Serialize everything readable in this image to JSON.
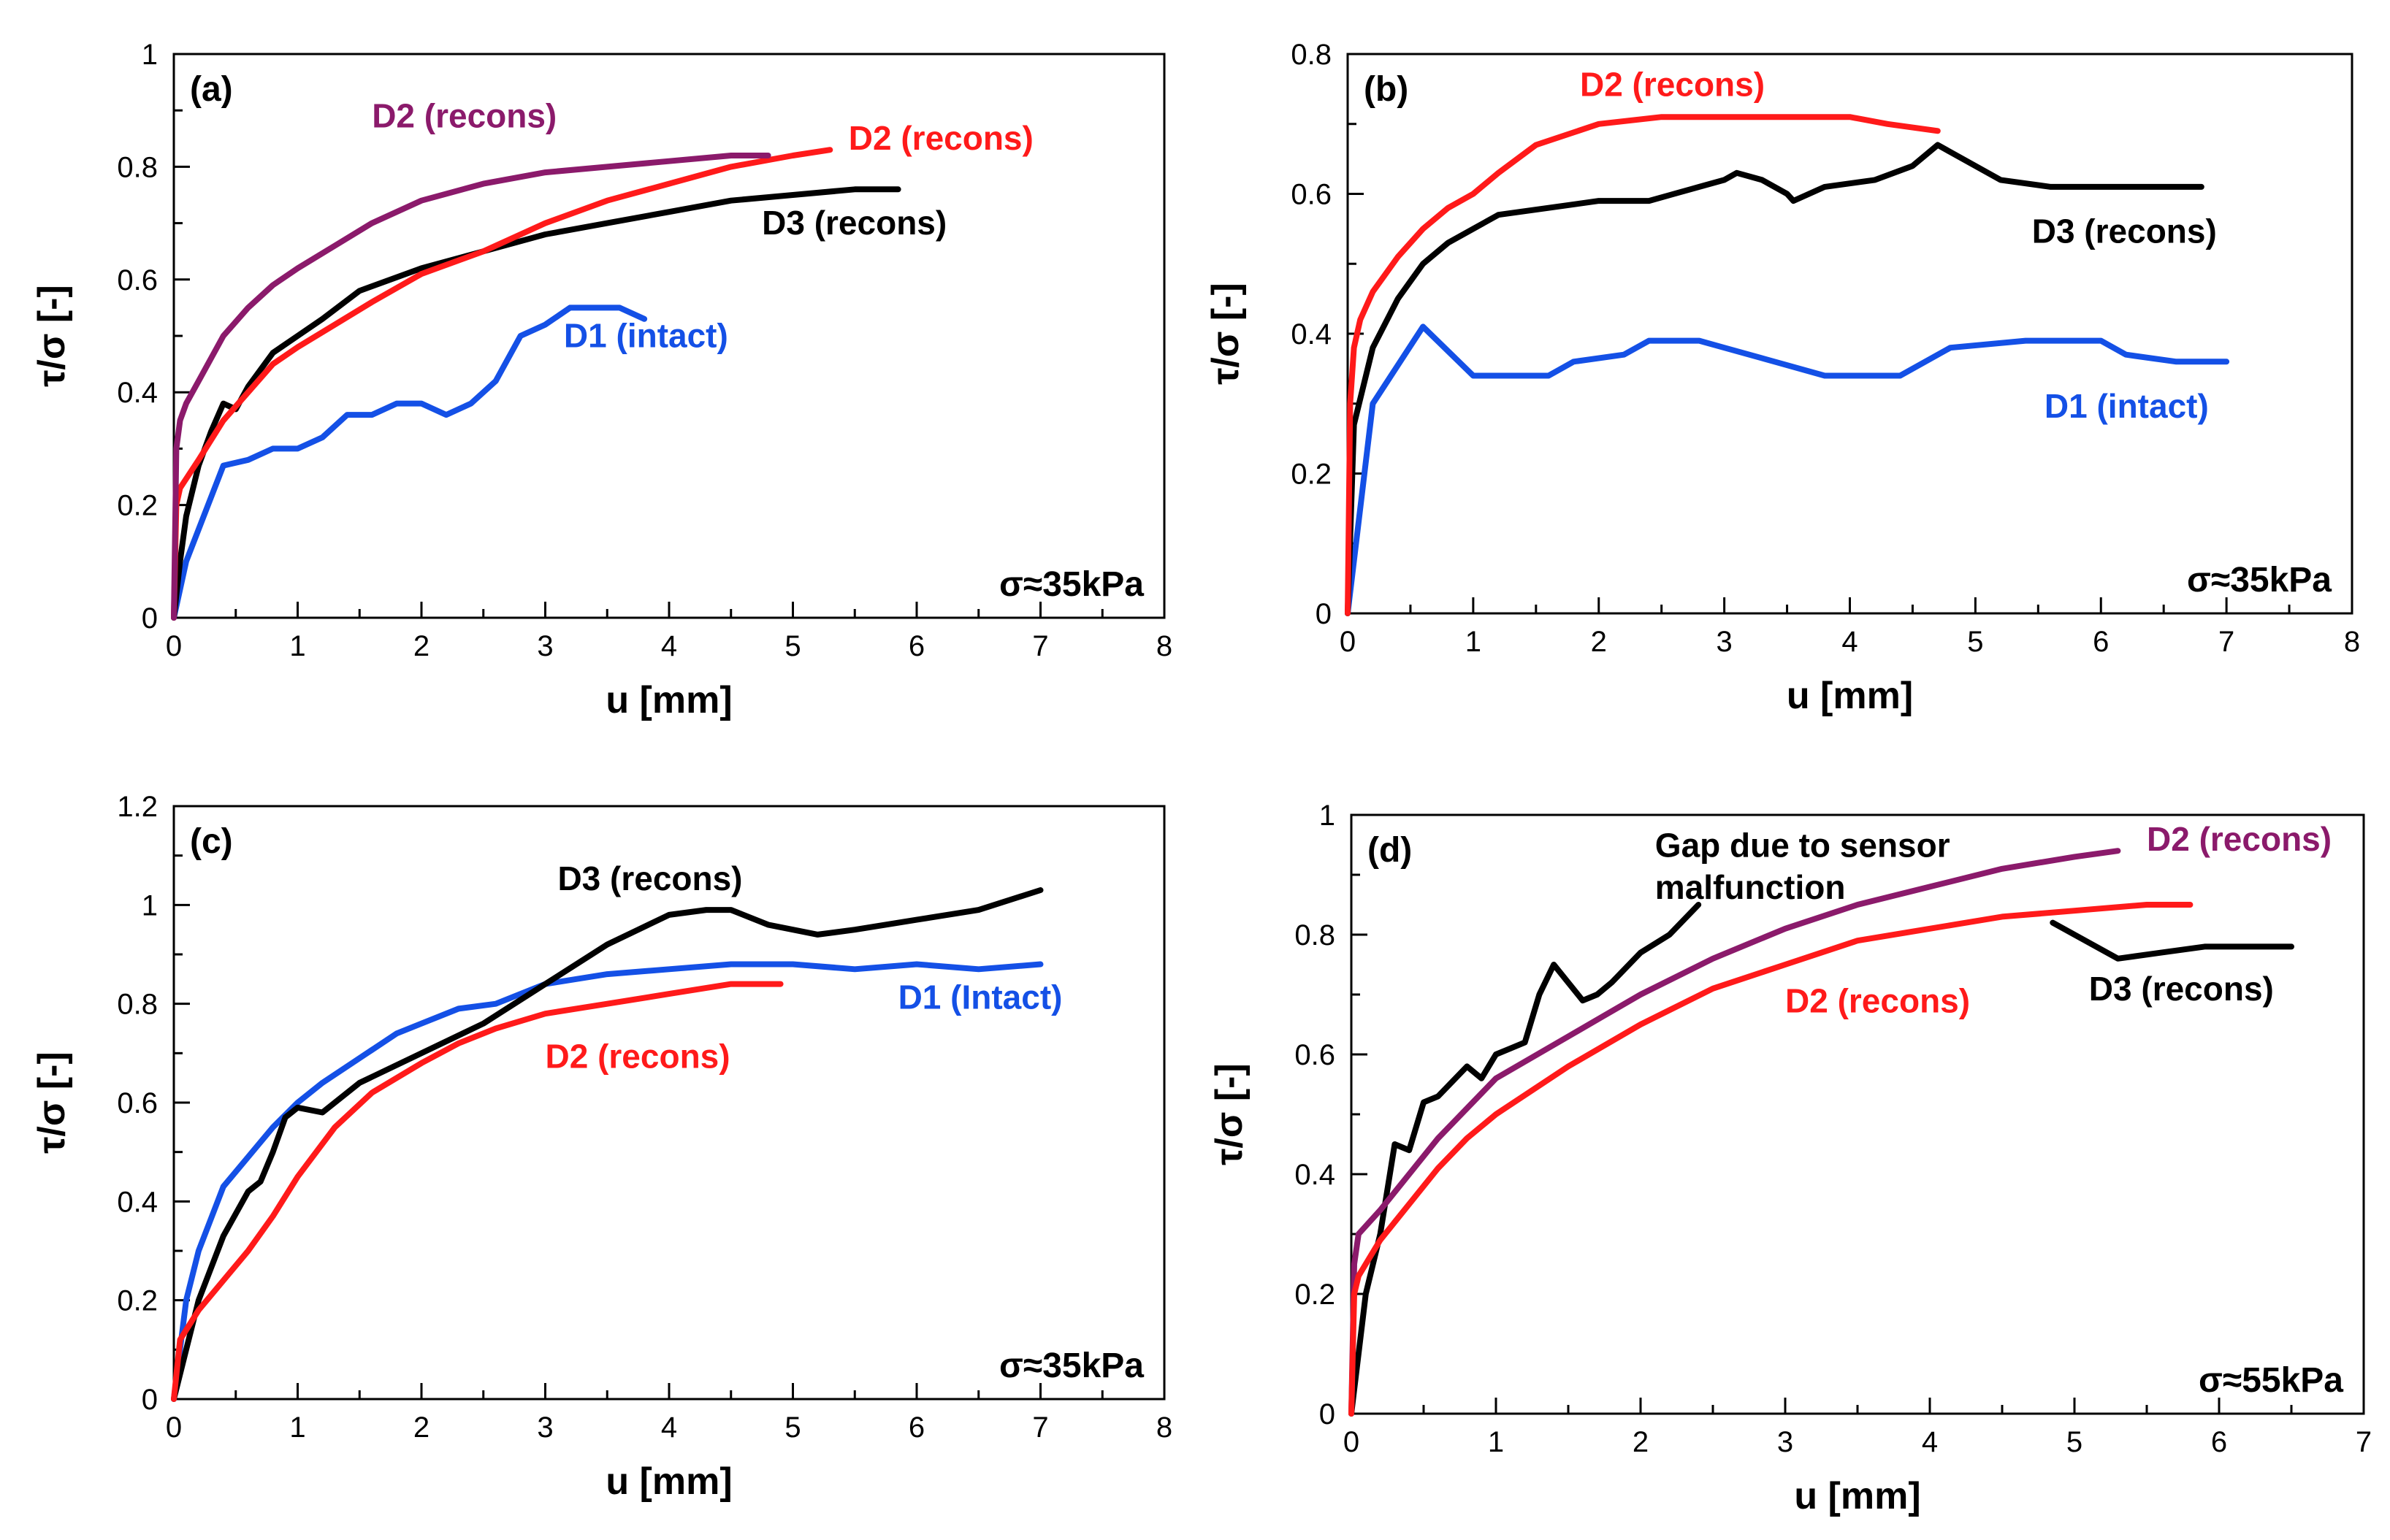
{
  "colors": {
    "black": "#000000",
    "red": "#ff1a1a",
    "blue": "#1450e6",
    "purple": "#8b1a6b"
  },
  "chart_data": [
    {
      "type": "line",
      "panel": "(a)",
      "xlabel": "u [mm]",
      "ylabel": "τ/σ [-]",
      "xlim": [
        0,
        8
      ],
      "ylim": [
        0,
        1
      ],
      "xticks": [
        "0",
        "1",
        "2",
        "3",
        "4",
        "5",
        "6",
        "7",
        "8"
      ],
      "yticks": [
        "0",
        "0.2",
        "0.4",
        "0.6",
        "0.8",
        "1"
      ],
      "stress": "σ≈35kPa",
      "series": [
        {
          "name": "D1 (intact)",
          "color": "blue",
          "x": [
            0,
            0.1,
            0.4,
            0.6,
            0.8,
            1.0,
            1.2,
            1.4,
            1.6,
            1.8,
            2.0,
            2.2,
            2.4,
            2.6,
            2.8,
            3.0,
            3.2,
            3.4,
            3.6,
            3.8
          ],
          "y": [
            0,
            0.1,
            0.27,
            0.28,
            0.3,
            0.3,
            0.32,
            0.36,
            0.36,
            0.38,
            0.38,
            0.36,
            0.38,
            0.42,
            0.5,
            0.52,
            0.55,
            0.55,
            0.55,
            0.53
          ]
        },
        {
          "name": "D3 (recons)",
          "color": "black",
          "x": [
            0,
            0.05,
            0.1,
            0.2,
            0.3,
            0.4,
            0.5,
            0.6,
            0.8,
            1.0,
            1.2,
            1.5,
            2.0,
            2.5,
            3.0,
            3.5,
            4.0,
            4.5,
            5.0,
            5.5,
            5.85
          ],
          "y": [
            0,
            0.1,
            0.18,
            0.27,
            0.33,
            0.38,
            0.37,
            0.41,
            0.47,
            0.5,
            0.53,
            0.58,
            0.62,
            0.65,
            0.68,
            0.7,
            0.72,
            0.74,
            0.75,
            0.76,
            0.76
          ]
        },
        {
          "name": "D2 (recons)",
          "color": "red",
          "x": [
            0,
            0.02,
            0.05,
            0.2,
            0.4,
            0.6,
            0.8,
            1.0,
            1.3,
            1.6,
            2.0,
            2.5,
            3.0,
            3.5,
            4.0,
            4.5,
            5.0,
            5.3
          ],
          "y": [
            0,
            0.2,
            0.23,
            0.28,
            0.35,
            0.4,
            0.45,
            0.48,
            0.52,
            0.56,
            0.61,
            0.65,
            0.7,
            0.74,
            0.77,
            0.8,
            0.82,
            0.83
          ]
        },
        {
          "name": "D2 (recons)",
          "color": "purple",
          "x": [
            0,
            0.02,
            0.05,
            0.1,
            0.2,
            0.4,
            0.6,
            0.8,
            1.0,
            1.3,
            1.6,
            2.0,
            2.5,
            3.0,
            3.5,
            4.0,
            4.5,
            4.8
          ],
          "y": [
            0,
            0.3,
            0.35,
            0.38,
            0.42,
            0.5,
            0.55,
            0.59,
            0.62,
            0.66,
            0.7,
            0.74,
            0.77,
            0.79,
            0.8,
            0.81,
            0.82,
            0.82
          ]
        }
      ],
      "annotations": [
        {
          "text": "D2 (recons)",
          "color": "purple",
          "x": 1.6,
          "y": 0.87
        },
        {
          "text": "D2 (recons)",
          "color": "red",
          "x": 5.45,
          "y": 0.83
        },
        {
          "text": "D3 (recons)",
          "color": "black",
          "x": 4.75,
          "y": 0.68
        },
        {
          "text": "D1 (intact)",
          "color": "blue",
          "x": 3.15,
          "y": 0.48
        }
      ]
    },
    {
      "type": "line",
      "panel": "(b)",
      "xlabel": "u [mm]",
      "ylabel": "τ/σ [-]",
      "xlim": [
        0,
        8
      ],
      "ylim": [
        0,
        0.8
      ],
      "xticks": [
        "0",
        "1",
        "2",
        "3",
        "4",
        "5",
        "6",
        "7",
        "8"
      ],
      "yticks": [
        "0",
        "0.2",
        "0.4",
        "0.6",
        "0.8"
      ],
      "stress": "σ≈35kPa",
      "series": [
        {
          "name": "D1 (intact)",
          "color": "blue",
          "x": [
            0,
            0.2,
            0.6,
            1.0,
            1.6,
            1.8,
            2.2,
            2.4,
            2.8,
            3.0,
            3.4,
            3.8,
            4.4,
            4.8,
            5.4,
            6.0,
            6.2,
            6.6,
            6.8,
            7.0
          ],
          "y": [
            0,
            0.3,
            0.41,
            0.34,
            0.34,
            0.36,
            0.37,
            0.39,
            0.39,
            0.38,
            0.36,
            0.34,
            0.34,
            0.38,
            0.39,
            0.39,
            0.37,
            0.36,
            0.36,
            0.36
          ]
        },
        {
          "name": "D3 (recons)",
          "color": "black",
          "x": [
            0,
            0.05,
            0.2,
            0.4,
            0.6,
            0.8,
            1.0,
            1.2,
            1.6,
            2.0,
            2.4,
            2.8,
            3.0,
            3.1,
            3.3,
            3.5,
            3.55,
            3.8,
            4.2,
            4.5,
            4.7,
            4.8,
            5.0,
            5.2,
            5.6,
            6.0,
            6.4,
            6.8
          ],
          "y": [
            0,
            0.27,
            0.38,
            0.45,
            0.5,
            0.53,
            0.55,
            0.57,
            0.58,
            0.59,
            0.59,
            0.61,
            0.62,
            0.63,
            0.62,
            0.6,
            0.59,
            0.61,
            0.62,
            0.64,
            0.67,
            0.66,
            0.64,
            0.62,
            0.61,
            0.61,
            0.61,
            0.61
          ]
        },
        {
          "name": "D2 (recons)",
          "color": "red",
          "x": [
            0,
            0.02,
            0.05,
            0.1,
            0.2,
            0.4,
            0.6,
            0.8,
            1.0,
            1.2,
            1.5,
            2.0,
            2.5,
            3.0,
            3.5,
            4.0,
            4.3,
            4.7
          ],
          "y": [
            0,
            0.3,
            0.38,
            0.42,
            0.46,
            0.51,
            0.55,
            0.58,
            0.6,
            0.63,
            0.67,
            0.7,
            0.71,
            0.71,
            0.71,
            0.71,
            0.7,
            0.69
          ]
        }
      ],
      "annotations": [
        {
          "text": "D2 (recons)",
          "color": "red",
          "x": 1.85,
          "y": 0.74
        },
        {
          "text": "D3 (recons)",
          "color": "black",
          "x": 5.45,
          "y": 0.53
        },
        {
          "text": "D1 (intact)",
          "color": "blue",
          "x": 5.55,
          "y": 0.28
        }
      ]
    },
    {
      "type": "line",
      "panel": "(c)",
      "xlabel": "u [mm]",
      "ylabel": "τ/σ [-]",
      "xlim": [
        0,
        8
      ],
      "ylim": [
        0,
        1.2
      ],
      "xticks": [
        "0",
        "1",
        "2",
        "3",
        "4",
        "5",
        "6",
        "7",
        "8"
      ],
      "yticks": [
        "0",
        "0.2",
        "0.4",
        "0.6",
        "0.8",
        "1",
        "1.2"
      ],
      "stress": "σ≈35kPa",
      "series": [
        {
          "name": "D1 (Intact)",
          "color": "blue",
          "x": [
            0,
            0.1,
            0.2,
            0.4,
            0.6,
            0.8,
            1.0,
            1.2,
            1.5,
            1.8,
            2.0,
            2.3,
            2.6,
            3.0,
            3.5,
            4.0,
            4.5,
            5.0,
            5.5,
            6.0,
            6.5,
            7.0
          ],
          "y": [
            0,
            0.2,
            0.3,
            0.43,
            0.49,
            0.55,
            0.6,
            0.64,
            0.69,
            0.74,
            0.76,
            0.79,
            0.8,
            0.84,
            0.86,
            0.87,
            0.88,
            0.88,
            0.87,
            0.88,
            0.87,
            0.88
          ]
        },
        {
          "name": "D3 (recons)",
          "color": "black",
          "x": [
            0,
            0.1,
            0.2,
            0.4,
            0.6,
            0.7,
            0.8,
            0.9,
            1.0,
            1.2,
            1.5,
            2.0,
            2.5,
            3.0,
            3.5,
            4.0,
            4.3,
            4.5,
            4.8,
            5.2,
            5.5,
            6.0,
            6.5,
            7.0
          ],
          "y": [
            0,
            0.1,
            0.2,
            0.33,
            0.42,
            0.44,
            0.5,
            0.57,
            0.59,
            0.58,
            0.64,
            0.7,
            0.76,
            0.84,
            0.92,
            0.98,
            0.99,
            0.99,
            0.96,
            0.94,
            0.95,
            0.97,
            0.99,
            1.03
          ]
        },
        {
          "name": "D2 (recons)",
          "color": "red",
          "x": [
            0,
            0.05,
            0.2,
            0.4,
            0.6,
            0.8,
            1.0,
            1.3,
            1.6,
            2.0,
            2.3,
            2.6,
            3.0,
            3.5,
            4.0,
            4.5,
            4.9
          ],
          "y": [
            0,
            0.12,
            0.18,
            0.24,
            0.3,
            0.37,
            0.45,
            0.55,
            0.62,
            0.68,
            0.72,
            0.75,
            0.78,
            0.8,
            0.82,
            0.84,
            0.84
          ]
        }
      ],
      "annotations": [
        {
          "text": "D3 (recons)",
          "color": "black",
          "x": 3.1,
          "y": 1.03
        },
        {
          "text": "D1 (Intact)",
          "color": "blue",
          "x": 5.85,
          "y": 0.79
        },
        {
          "text": "D2 (recons)",
          "color": "red",
          "x": 3.0,
          "y": 0.67
        }
      ]
    },
    {
      "type": "line",
      "panel": "(d)",
      "xlabel": "u [mm]",
      "ylabel": "τ/σ [-]",
      "xlim": [
        0,
        7
      ],
      "ylim": [
        0,
        1
      ],
      "xticks": [
        "0",
        "1",
        "2",
        "3",
        "4",
        "5",
        "6",
        "7"
      ],
      "yticks": [
        "0",
        "0.2",
        "0.4",
        "0.6",
        "0.8",
        "1"
      ],
      "stress": "σ≈55kPa",
      "series": [
        {
          "name": "D3 (recons) part 1",
          "color": "black",
          "x": [
            0,
            0.1,
            0.2,
            0.3,
            0.4,
            0.5,
            0.6,
            0.8,
            0.9,
            1.0,
            1.1,
            1.2,
            1.3,
            1.4,
            1.5,
            1.6,
            1.7,
            1.8,
            2.0,
            2.2,
            2.4
          ],
          "y": [
            0,
            0.2,
            0.3,
            0.45,
            0.44,
            0.52,
            0.53,
            0.58,
            0.56,
            0.6,
            0.61,
            0.62,
            0.7,
            0.75,
            0.72,
            0.69,
            0.7,
            0.72,
            0.77,
            0.8,
            0.85
          ]
        },
        {
          "name": "D3 (recons) part 2",
          "color": "black",
          "x": [
            4.85,
            5.0,
            5.3,
            5.6,
            5.9,
            6.2,
            6.5
          ],
          "y": [
            0.82,
            0.8,
            0.76,
            0.77,
            0.78,
            0.78,
            0.78
          ]
        },
        {
          "name": "D2 (recons)",
          "color": "purple",
          "x": [
            0,
            0.02,
            0.05,
            0.2,
            0.4,
            0.6,
            0.8,
            1.0,
            1.5,
            2.0,
            2.5,
            3.0,
            3.5,
            4.0,
            4.5,
            5.0,
            5.3
          ],
          "y": [
            0,
            0.25,
            0.3,
            0.34,
            0.4,
            0.46,
            0.51,
            0.56,
            0.63,
            0.7,
            0.76,
            0.81,
            0.85,
            0.88,
            0.91,
            0.93,
            0.94
          ]
        },
        {
          "name": "D2 (recons)",
          "color": "red",
          "x": [
            0,
            0.02,
            0.05,
            0.2,
            0.4,
            0.6,
            0.8,
            1.0,
            1.5,
            2.0,
            2.5,
            3.0,
            3.5,
            4.0,
            4.5,
            5.0,
            5.5,
            5.8
          ],
          "y": [
            0,
            0.2,
            0.23,
            0.29,
            0.35,
            0.41,
            0.46,
            0.5,
            0.58,
            0.65,
            0.71,
            0.75,
            0.79,
            0.81,
            0.83,
            0.84,
            0.85,
            0.85
          ]
        }
      ],
      "annotations": [
        {
          "text": "Gap due to sensor",
          "color": "black",
          "x": 2.1,
          "y": 0.93
        },
        {
          "text": "malfunction",
          "color": "black",
          "x": 2.1,
          "y": 0.86
        },
        {
          "text": "D2 (recons)",
          "color": "purple",
          "x": 5.5,
          "y": 0.94
        },
        {
          "text": "D2 (recons)",
          "color": "red",
          "x": 3.0,
          "y": 0.67
        },
        {
          "text": "D3 (recons)",
          "color": "black",
          "x": 5.1,
          "y": 0.69
        }
      ]
    }
  ]
}
